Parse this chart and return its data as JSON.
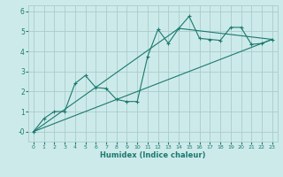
{
  "xlabel": "Humidex (Indice chaleur)",
  "xlim": [
    -0.5,
    23.5
  ],
  "ylim": [
    -0.5,
    6.3
  ],
  "yticks": [
    0,
    1,
    2,
    3,
    4,
    5,
    6
  ],
  "ytick_labels": [
    "-0",
    "1",
    "2",
    "3",
    "4",
    "5",
    "6"
  ],
  "xticks": [
    0,
    1,
    2,
    3,
    4,
    5,
    6,
    7,
    8,
    9,
    10,
    11,
    12,
    13,
    14,
    15,
    16,
    17,
    18,
    19,
    20,
    21,
    22,
    23
  ],
  "bg_color": "#cdeaea",
  "grid_color": "#aacccc",
  "line_color": "#1a7a6e",
  "series1_x": [
    0,
    1,
    2,
    3,
    4,
    5,
    6,
    7,
    8,
    9,
    10,
    11,
    12,
    13,
    14,
    15,
    16,
    17,
    18,
    19,
    20,
    21,
    22,
    23
  ],
  "series1_y": [
    0.0,
    0.65,
    1.0,
    1.0,
    2.4,
    2.8,
    2.2,
    2.15,
    1.6,
    1.5,
    1.5,
    3.75,
    5.1,
    4.4,
    5.15,
    5.75,
    4.65,
    4.6,
    4.55,
    5.2,
    5.2,
    4.35,
    4.4,
    4.6
  ],
  "series2_x": [
    0,
    23
  ],
  "series2_y": [
    0.0,
    4.6
  ],
  "series3_x": [
    0,
    14,
    23
  ],
  "series3_y": [
    0.0,
    5.15,
    4.6
  ]
}
